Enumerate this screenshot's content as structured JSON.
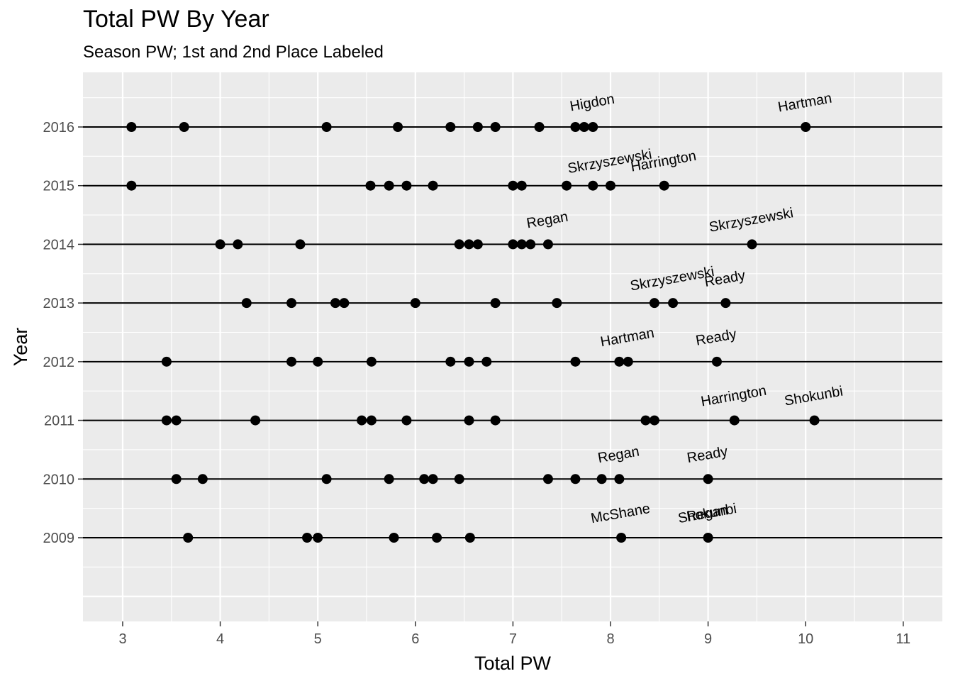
{
  "chart_data": {
    "type": "scatter",
    "title": "Total PW By Year",
    "subtitle": "Season PW; 1st and 2nd Place Labeled",
    "xlabel": "Total PW",
    "ylabel": "Year",
    "xlim": [
      2.6,
      11.2
    ],
    "x_ticks": [
      3,
      4,
      5,
      6,
      7,
      8,
      9,
      10,
      11
    ],
    "y_ticks": [
      2009,
      2010,
      2011,
      2012,
      2013,
      2014,
      2015,
      2016
    ],
    "ylim": [
      2007.6,
      2017.1
    ],
    "grid": true,
    "legend": "none",
    "series": [
      {
        "year": 2016,
        "x": [
          3.09,
          3.63,
          5.09,
          5.82,
          6.36,
          6.64,
          6.82,
          7.27,
          7.64,
          7.73,
          7.82,
          10.0
        ]
      },
      {
        "year": 2015,
        "x": [
          3.09,
          5.54,
          5.73,
          5.91,
          6.18,
          7.0,
          7.09,
          7.55,
          7.82,
          8.0,
          8.55
        ]
      },
      {
        "year": 2014,
        "x": [
          4.0,
          4.18,
          4.82,
          6.45,
          6.55,
          6.64,
          7.0,
          7.09,
          7.18,
          7.36,
          9.45
        ]
      },
      {
        "year": 2013,
        "x": [
          4.27,
          4.73,
          5.18,
          5.27,
          6.0,
          6.82,
          7.45,
          8.45,
          8.64,
          9.18
        ]
      },
      {
        "year": 2012,
        "x": [
          3.45,
          4.73,
          5.0,
          5.55,
          6.36,
          6.55,
          6.73,
          7.64,
          8.09,
          8.18,
          9.09
        ]
      },
      {
        "year": 2011,
        "x": [
          3.45,
          3.55,
          4.36,
          5.45,
          5.55,
          5.91,
          6.55,
          6.82,
          8.36,
          8.45,
          9.27,
          10.09
        ]
      },
      {
        "year": 2010,
        "x": [
          3.55,
          3.82,
          5.09,
          5.73,
          6.09,
          6.18,
          6.45,
          7.36,
          7.64,
          7.91,
          8.09,
          9.0
        ]
      },
      {
        "year": 2009,
        "x": [
          3.67,
          4.89,
          5.0,
          5.78,
          6.22,
          6.56,
          8.11,
          9.0
        ]
      }
    ],
    "labels": [
      {
        "year": 2016,
        "x": 7.82,
        "name": "Higdon"
      },
      {
        "year": 2016,
        "x": 10.0,
        "name": "Hartman"
      },
      {
        "year": 2015,
        "x": 8.0,
        "name": "Skrzyszewski"
      },
      {
        "year": 2015,
        "x": 8.55,
        "name": "Harrington"
      },
      {
        "year": 2014,
        "x": 7.36,
        "name": "Regan"
      },
      {
        "year": 2014,
        "x": 9.45,
        "name": "Skrzyszewski"
      },
      {
        "year": 2013,
        "x": 8.64,
        "name": "Skrzyszewski"
      },
      {
        "year": 2013,
        "x": 9.18,
        "name": "Ready"
      },
      {
        "year": 2012,
        "x": 8.18,
        "name": "Hartman"
      },
      {
        "year": 2012,
        "x": 9.09,
        "name": "Ready"
      },
      {
        "year": 2011,
        "x": 9.27,
        "name": "Harrington"
      },
      {
        "year": 2011,
        "x": 10.09,
        "name": "Shokunbi"
      },
      {
        "year": 2010,
        "x": 8.09,
        "name": "Regan"
      },
      {
        "year": 2010,
        "x": 9.0,
        "name": "Ready"
      },
      {
        "year": 2009,
        "x": 8.11,
        "name": "McShane"
      },
      {
        "year": 2009,
        "x": 9.0,
        "name": "Shokunbi"
      },
      {
        "year": 2009,
        "x": 9.0,
        "name": "Regan"
      }
    ],
    "colors": {
      "panel": "#ebebeb",
      "grid": "#ffffff",
      "line": "#000000",
      "point": "#000000",
      "tick_label": "#4d4d4d"
    }
  }
}
